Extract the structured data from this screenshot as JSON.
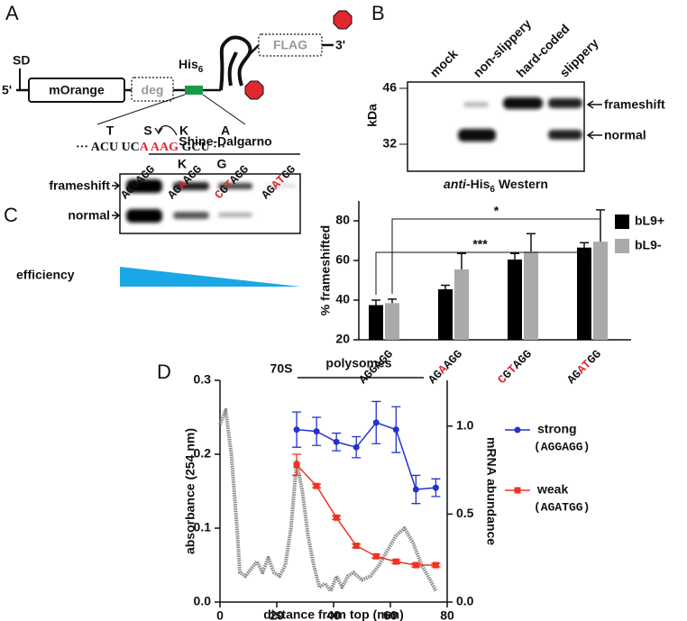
{
  "panel_labels": [
    "A",
    "B",
    "C",
    "D"
  ],
  "construct": {
    "sd": "SD",
    "five_prime": "5'",
    "reporter": "mOrange",
    "degron": "deg",
    "tag": "His",
    "tag_subscript": "6",
    "flag": "FLAG",
    "three_prime": "3'",
    "aa_top": [
      "T",
      "S",
      "K",
      "A"
    ],
    "codons": [
      {
        "text": "··· ACU UC",
        "color": "#111111"
      },
      {
        "text": "A AAG",
        "color": "#e0282e"
      },
      {
        "text": " GCU ···",
        "color": "#111111"
      }
    ],
    "aa_bottom": [
      "K",
      "G"
    ]
  },
  "western": {
    "lanes": [
      "mock",
      "non-slippery",
      "hard-coded",
      "slippery"
    ],
    "markers": [
      46,
      32
    ],
    "marker_unit": "kDa",
    "bands": [
      "frameshift",
      "normal"
    ],
    "caption_italic": "anti",
    "caption_tag": "-His",
    "caption_subscript": "6",
    "caption_rest": "Western"
  },
  "gel": {
    "title": "Shine-Dalgarno",
    "lanes": [
      "AGGAGG",
      "AGAAGG",
      "CGTAGG",
      "AGATGG"
    ],
    "highlight_color": "#e0282e",
    "bands": [
      "frameshift",
      "normal"
    ],
    "gradient_label": "efficiency",
    "gradient_color": "#1aa7e6"
  },
  "chart_data": [
    {
      "type": "bar",
      "categories": [
        "AGGAGG",
        "AGAAGG",
        "CGTAGG",
        "AGATGG"
      ],
      "highlight_color": "#e0282e",
      "ylabel": "% frameshifted",
      "ylim": [
        20,
        90
      ],
      "yticks": [
        20,
        40,
        60,
        80
      ],
      "series": [
        {
          "name": "bL9+",
          "color": "#000000",
          "values": [
            37.5,
            45.5,
            60.5,
            66.5
          ],
          "errors": [
            2.5,
            2,
            3,
            2.5
          ]
        },
        {
          "name": "bL9-",
          "color": "#aaaaaa",
          "values": [
            38.5,
            55.5,
            64.5,
            69.5
          ],
          "errors": [
            2,
            8,
            9,
            16
          ]
        }
      ],
      "annotations": [
        {
          "text": "***"
        },
        {
          "text": "*"
        }
      ]
    },
    {
      "type": "line",
      "xlabel": "distance from top (mm)",
      "ylabel": "absorbance (254 nm)",
      "y2label": "mRNA abundance",
      "xlim": [
        0,
        80
      ],
      "xticks": [
        0,
        20,
        40,
        60,
        80
      ],
      "ylim": [
        0,
        0.3
      ],
      "yticks": [
        {
          "value": 0,
          "label": "0.0"
        },
        {
          "value": 0.1,
          "label": "0.1"
        },
        {
          "value": 0.2,
          "label": "0.2"
        },
        {
          "value": 0.3,
          "label": "0.3"
        }
      ],
      "y2lim": [
        0,
        1.26
      ],
      "y2ticks": [
        {
          "value": 0,
          "label": "0.0"
        },
        {
          "value": 0.5,
          "label": "0.5"
        },
        {
          "value": 1,
          "label": "1.0"
        }
      ],
      "series": [
        {
          "color": "#888888",
          "x": [
            0,
            2,
            4,
            6,
            7,
            9,
            11,
            13,
            15,
            17,
            19,
            21,
            23,
            25,
            27,
            29,
            31,
            33,
            35,
            37,
            39,
            41,
            43,
            45,
            47,
            50,
            53,
            56,
            59,
            62,
            65,
            68,
            71,
            74,
            76
          ],
          "values": [
            0.24,
            0.26,
            0.2,
            0.1,
            0.04,
            0.035,
            0.045,
            0.055,
            0.04,
            0.06,
            0.04,
            0.035,
            0.05,
            0.1,
            0.19,
            0.15,
            0.09,
            0.05,
            0.02,
            0.025,
            0.015,
            0.035,
            0.02,
            0.035,
            0.04,
            0.03,
            0.035,
            0.05,
            0.07,
            0.09,
            0.1,
            0.08,
            0.05,
            0.03,
            0.015
          ]
        },
        {
          "name": "strong",
          "label_detail": "(AGGAGG)",
          "color": "#2233cc",
          "axis": "y2",
          "marker": "circle",
          "x": [
            27,
            34,
            41,
            48,
            55,
            62,
            69,
            76
          ],
          "values": [
            0.98,
            0.97,
            0.91,
            0.88,
            1.02,
            0.98,
            0.64,
            0.65
          ],
          "errors": [
            0.1,
            0.08,
            0.05,
            0.06,
            0.12,
            0.13,
            0.08,
            0.05
          ]
        },
        {
          "name": "weak",
          "label_detail": "(AGATGG)",
          "color": "#ee3322",
          "axis": "y2",
          "marker": "square",
          "x": [
            27,
            34,
            41,
            48,
            55,
            62,
            69,
            76
          ],
          "values": [
            0.78,
            0.66,
            0.48,
            0.32,
            0.26,
            0.23,
            0.21,
            0.21
          ],
          "errors": [
            0.06,
            0.01,
            0.01,
            0.01,
            0.01,
            0.01,
            0.01,
            0.01
          ]
        }
      ],
      "annotations": [
        {
          "text": "70S"
        },
        {
          "text": "polysomes"
        }
      ]
    }
  ]
}
